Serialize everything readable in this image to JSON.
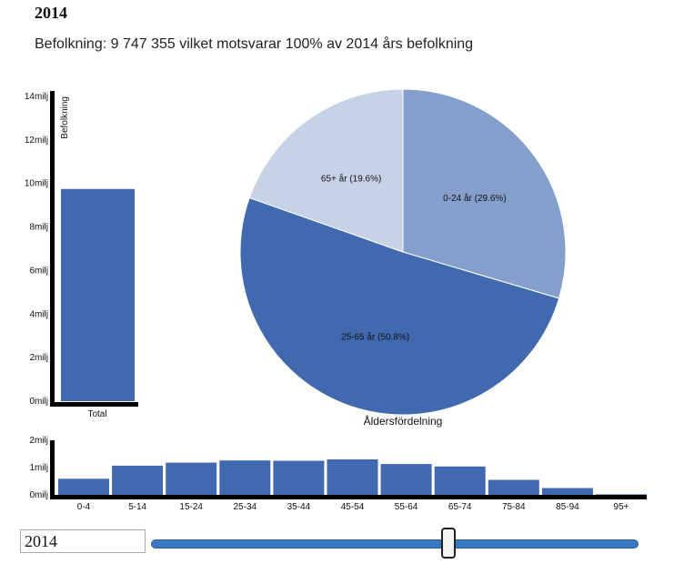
{
  "heading": "2014",
  "summary": "Befolkning: 9 747 355 vilket motsvarar 100% av 2014 års befolkning",
  "colors": {
    "bar": "#4169b0",
    "axis": "#000000"
  },
  "controls": {
    "year_value": "2014",
    "slider_fraction": 0.61
  },
  "chart_data": [
    {
      "type": "bar",
      "categories": [
        "Total"
      ],
      "values": [
        9747355
      ],
      "ylabel": "Befolkning",
      "ylim": [
        0,
        14000000
      ],
      "yticks": [
        {
          "value": 0,
          "label": "0milj"
        },
        {
          "value": 2000000,
          "label": "2milj"
        },
        {
          "value": 4000000,
          "label": "4milj"
        },
        {
          "value": 6000000,
          "label": "6milj"
        },
        {
          "value": 8000000,
          "label": "8milj"
        },
        {
          "value": 10000000,
          "label": "10milj"
        },
        {
          "value": 12000000,
          "label": "12milj"
        },
        {
          "value": 14000000,
          "label": "14milj"
        }
      ]
    },
    {
      "type": "pie",
      "xlabel": "Åldersfördelning",
      "slices": [
        {
          "label": "0-24 år (29.6%)",
          "value": 29.6,
          "color": "#859fcc"
        },
        {
          "label": "25-65 år (50.8%)",
          "value": 50.8,
          "color": "#4169b0"
        },
        {
          "label": "65+ år (19.6%)",
          "value": 19.6,
          "color": "#c6d3e7"
        }
      ]
    },
    {
      "type": "bar",
      "categories": [
        "0-4",
        "5-14",
        "15-24",
        "25-34",
        "35-44",
        "45-54",
        "55-64",
        "65-74",
        "75-84",
        "85-94",
        "95+"
      ],
      "values": [
        590000,
        1070000,
        1180000,
        1260000,
        1250000,
        1300000,
        1130000,
        1040000,
        550000,
        250000,
        20000
      ],
      "ylim": [
        0,
        2000000
      ],
      "yticks": [
        {
          "value": 0,
          "label": "0milj"
        },
        {
          "value": 1000000,
          "label": "1milj"
        },
        {
          "value": 2000000,
          "label": "2milj"
        }
      ]
    }
  ]
}
